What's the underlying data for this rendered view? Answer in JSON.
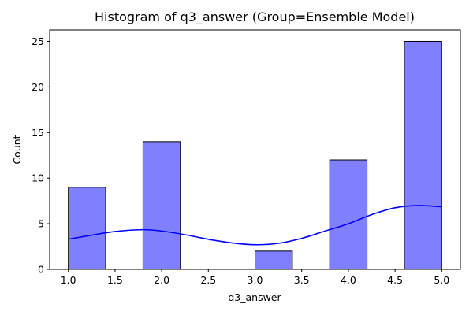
{
  "chart_data": {
    "type": "bar",
    "title": "Histogram of q3_answer (Group=Ensemble Model)",
    "xlabel": "q3_answer",
    "ylabel": "Count",
    "xlim": [
      0.8,
      5.2
    ],
    "ylim": [
      0,
      26.25
    ],
    "xticks": [
      "1.0",
      "1.5",
      "2.0",
      "2.5",
      "3.0",
      "3.5",
      "4.0",
      "4.5",
      "5.0"
    ],
    "yticks": [
      "0",
      "5",
      "10",
      "15",
      "20",
      "25"
    ],
    "bins": [
      {
        "x0": 1.0,
        "x1": 1.4,
        "count": 9
      },
      {
        "x0": 1.4,
        "x1": 1.8,
        "count": 0
      },
      {
        "x0": 1.8,
        "x1": 2.2,
        "count": 14
      },
      {
        "x0": 2.2,
        "x1": 2.6,
        "count": 0
      },
      {
        "x0": 2.6,
        "x1": 3.0,
        "count": 0
      },
      {
        "x0": 3.0,
        "x1": 3.4,
        "count": 2
      },
      {
        "x0": 3.4,
        "x1": 3.8,
        "count": 0
      },
      {
        "x0": 3.8,
        "x1": 4.2,
        "count": 12
      },
      {
        "x0": 4.2,
        "x1": 4.6,
        "count": 0
      },
      {
        "x0": 4.6,
        "x1": 5.0,
        "count": 25
      }
    ],
    "kde": {
      "x": [
        1.0,
        1.25,
        1.5,
        1.8,
        2.0,
        2.25,
        2.5,
        2.75,
        3.0,
        3.25,
        3.5,
        3.75,
        4.0,
        4.25,
        4.5,
        4.75,
        5.0
      ],
      "y": [
        3.3,
        3.75,
        4.15,
        4.35,
        4.2,
        3.8,
        3.3,
        2.9,
        2.7,
        2.85,
        3.4,
        4.2,
        5.0,
        6.0,
        6.75,
        7.0,
        6.85
      ]
    },
    "bar_fill": "#8080ff",
    "bar_stroke": "#000000",
    "kde_color": "#0000ff",
    "grid": false
  }
}
